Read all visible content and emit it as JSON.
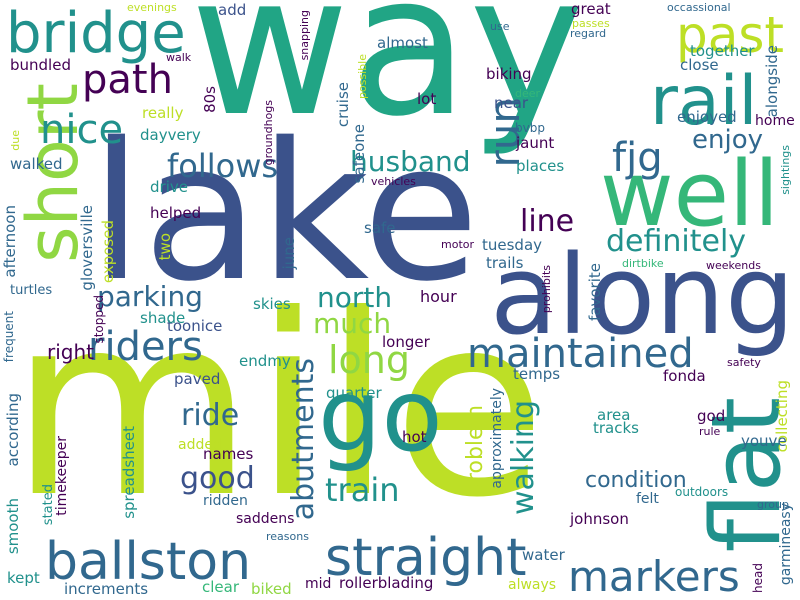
{
  "palette": {
    "dark_purple": "#440154",
    "blue": "#31688e",
    "slate": "#3b528b",
    "teal": "#21918c",
    "green": "#35b779",
    "light_green": "#90d743",
    "yellow_green": "#bddf26",
    "light_yellow": "#dce319"
  },
  "words": [
    "way",
    "lake",
    "mile",
    "along",
    "short",
    "well",
    "go",
    "flat",
    "bridge",
    "rail",
    "past",
    "path",
    "nice",
    "run",
    "fjg",
    "enjoy",
    "follows",
    "husband",
    "straight",
    "ballston",
    "markers",
    "maintained",
    "riders",
    "definitely",
    "line",
    "north",
    "parking",
    "long",
    "much",
    "abutments",
    "train",
    "walking",
    "ride",
    "good",
    "condition",
    "right",
    "problem",
    "hour",
    "approximately",
    "toonice",
    "shade",
    "skies",
    "endmy",
    "paved",
    "names",
    "hot",
    "added",
    "according",
    "quarter",
    "temps",
    "fonda",
    "area",
    "tracks",
    "god",
    "collecting",
    "youve",
    "felt",
    "johnson",
    "water",
    "outdoors",
    "group",
    "garmineasy",
    "head",
    "safety",
    "mid",
    "rollerblading",
    "clear",
    "biked",
    "increments",
    "kept",
    "always",
    "reasons",
    "saddens",
    "timekeeper",
    "stated",
    "smooth",
    "spreadsheet",
    "ridden",
    "stopped",
    "turtles",
    "frequent",
    "afternoon",
    "gloversville",
    "exposed",
    "helped",
    "two",
    "drive",
    "dayvery",
    "really",
    "walked",
    "bundled",
    "evenings",
    "walk",
    "add",
    "80s",
    "groundhogs",
    "snapping",
    "cruise",
    "possible",
    "almost",
    "lot",
    "safeone",
    "vehicles",
    "motor",
    "tuesday",
    "june",
    "safe",
    "trails",
    "bvbp",
    "jaunt",
    "places",
    "biking",
    "near",
    "use",
    "deer",
    "great",
    "passes",
    "regard",
    "occassional",
    "together",
    "close",
    "alongside",
    "enjoyed",
    "home",
    "sightings",
    "weekends",
    "dirtbike",
    "prohibits",
    "favorite",
    "longer",
    "due",
    "rule"
  ]
}
